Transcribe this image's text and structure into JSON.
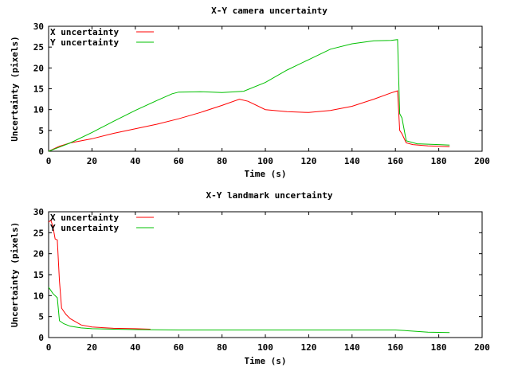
{
  "chart_data": [
    {
      "type": "line",
      "title": "X-Y camera uncertainty",
      "xlabel": "Time (s)",
      "ylabel": "Uncertainty (pixels)",
      "xlim": [
        0,
        200
      ],
      "ylim": [
        0,
        30
      ],
      "xticks": [
        "0",
        "20",
        "40",
        "60",
        "80",
        "100",
        "120",
        "140",
        "160",
        "180",
        "200"
      ],
      "yticks": [
        "0",
        "5",
        "10",
        "15",
        "20",
        "25",
        "30"
      ],
      "legend_position": "top-left",
      "grid": false,
      "series": [
        {
          "name": "X uncertainty",
          "color": "#ff0000",
          "x": [
            0,
            5,
            10,
            20,
            30,
            40,
            50,
            60,
            70,
            80,
            88,
            92,
            100,
            110,
            120,
            130,
            140,
            150,
            158,
            161,
            162,
            163,
            165,
            168,
            175,
            180,
            185
          ],
          "y": [
            0,
            1.2,
            2.0,
            3.0,
            4.3,
            5.4,
            6.5,
            7.8,
            9.3,
            11.0,
            12.5,
            12.0,
            10.0,
            9.5,
            9.3,
            9.8,
            10.8,
            12.5,
            14.0,
            14.5,
            5.0,
            4.2,
            2.0,
            1.6,
            1.3,
            1.2,
            1.1
          ]
        },
        {
          "name": "Y uncertainty",
          "color": "#00c000",
          "x": [
            0,
            5,
            10,
            20,
            30,
            40,
            50,
            57,
            60,
            70,
            80,
            90,
            100,
            110,
            120,
            130,
            140,
            150,
            158,
            161,
            162,
            163,
            165,
            170,
            180,
            185
          ],
          "y": [
            0,
            1.0,
            2.0,
            4.5,
            7.2,
            9.8,
            12.2,
            13.8,
            14.2,
            14.3,
            14.1,
            14.4,
            16.5,
            19.5,
            22.0,
            24.5,
            25.8,
            26.5,
            26.6,
            26.8,
            9.0,
            8.0,
            2.5,
            1.8,
            1.6,
            1.5
          ]
        }
      ]
    },
    {
      "type": "line",
      "title": "X-Y landmark uncertainty",
      "xlabel": "Time (s)",
      "ylabel": "Uncertainty (pixels)",
      "xlim": [
        0,
        200
      ],
      "ylim": [
        0,
        30
      ],
      "xticks": [
        "0",
        "20",
        "40",
        "60",
        "80",
        "100",
        "120",
        "140",
        "160",
        "180",
        "200"
      ],
      "yticks": [
        "0",
        "5",
        "10",
        "15",
        "20",
        "25",
        "30"
      ],
      "legend_position": "top-left",
      "grid": false,
      "series": [
        {
          "name": "X uncertainty",
          "color": "#ff0000",
          "x": [
            0,
            1,
            2,
            3,
            4,
            5,
            6,
            8,
            10,
            15,
            20,
            30,
            40,
            47
          ],
          "y": [
            27.5,
            28,
            26.5,
            23.5,
            23.3,
            13.5,
            7,
            5.5,
            4.5,
            3.0,
            2.5,
            2.2,
            2.1,
            2.0
          ]
        },
        {
          "name": "Y uncertainty",
          "color": "#00c000",
          "x": [
            0,
            2,
            4,
            5,
            7,
            10,
            15,
            20,
            30,
            40,
            60,
            80,
            100,
            120,
            140,
            160,
            163,
            175,
            185
          ],
          "y": [
            12,
            10.5,
            9.5,
            4.0,
            3.3,
            2.7,
            2.3,
            2.1,
            2.0,
            1.9,
            1.8,
            1.8,
            1.8,
            1.8,
            1.8,
            1.8,
            1.7,
            1.3,
            1.2
          ]
        }
      ]
    }
  ]
}
